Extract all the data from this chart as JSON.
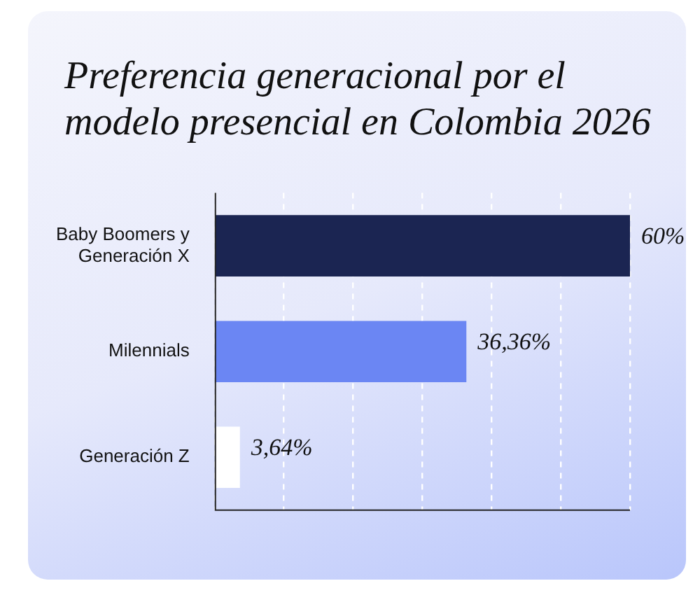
{
  "chart_data": {
    "type": "bar",
    "orientation": "horizontal",
    "title": "Preferencia generacional por el modelo presencial en Colombia 2026",
    "categories": [
      "Baby Boomers y Generación X",
      "Milennials",
      "Generación Z"
    ],
    "values": [
      60,
      36.36,
      3.64
    ],
    "colors": [
      "#1b2552",
      "#6b86f3",
      "#ffffff"
    ],
    "value_labels": [
      "60%",
      "36,36%",
      "3,64%"
    ],
    "xlim": [
      0,
      60
    ],
    "xticks": [
      {
        "value": 0,
        "label": null
      },
      {
        "value": 10,
        "label": null
      },
      {
        "value": 20,
        "label": null
      },
      {
        "value": 30,
        "label": null
      },
      {
        "value": 40,
        "label": null
      },
      {
        "value": 50,
        "label": null
      },
      {
        "value": 60,
        "label": null
      }
    ],
    "tick_labels": "y",
    "grid": "x"
  }
}
